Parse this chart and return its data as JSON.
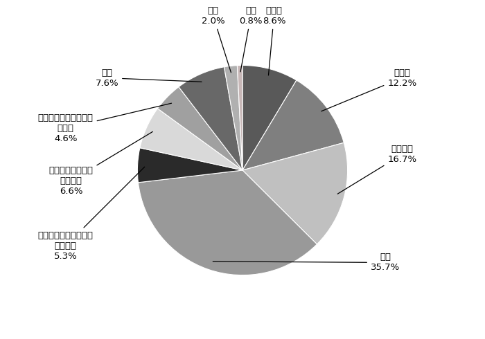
{
  "slices": [
    {
      "label": "その他",
      "pct": "8.6%",
      "value": 8.6,
      "color": "#595959"
    },
    {
      "label": "グルメ",
      "pct": "12.2%",
      "value": 12.2,
      "color": "#7f7f7f"
    },
    {
      "label": "スイーツ",
      "pct": "16.7%",
      "value": 16.7,
      "color": "#c0c0c0"
    },
    {
      "label": "お花",
      "pct": "35.7%",
      "value": 35.7,
      "color": "#999999"
    },
    {
      "label": "くらし・生活に役立つ\nアイテム",
      "pct": "5.3%",
      "value": 5.3,
      "color": "#2a2a2a"
    },
    {
      "label": "美容・健康に関連\nするもの",
      "pct": "6.6%",
      "value": 6.6,
      "color": "#d9d9d9"
    },
    {
      "label": "洋服・ファッション・\n装飾品",
      "pct": "4.6%",
      "value": 4.6,
      "color": "#a0a0a0"
    },
    {
      "label": "旅行",
      "pct": "7.6%",
      "value": 7.6,
      "color": "#686868"
    },
    {
      "label": "家電",
      "pct": "2.0%",
      "value": 2.0,
      "color": "#b0b0b0"
    },
    {
      "label": "書籍",
      "pct": "0.8%",
      "value": 0.8,
      "color": "#c8b8b8"
    }
  ],
  "startangle": 90,
  "background_color": "#ffffff",
  "edgecolor": "#ffffff",
  "edgewidth": 0.8
}
